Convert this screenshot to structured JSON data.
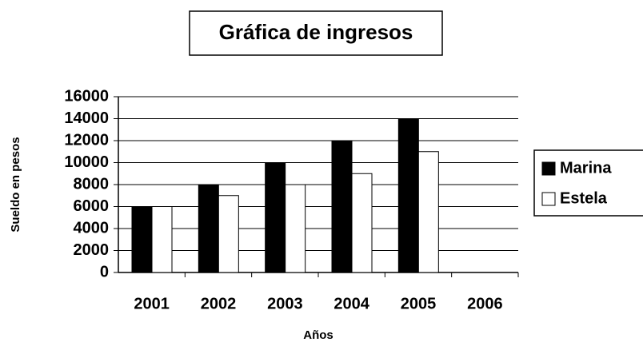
{
  "chart_data": {
    "type": "bar",
    "title": "Gráfica de ingresos",
    "categories": [
      "2001",
      "2002",
      "2003",
      "2004",
      "2005",
      "2006"
    ],
    "series": [
      {
        "name": "Marina",
        "color": "#000000",
        "values": [
          6000,
          8000,
          10000,
          12000,
          14000,
          null
        ]
      },
      {
        "name": "Estela",
        "color": "#ffffff",
        "values": [
          6000,
          7000,
          8000,
          9000,
          11000,
          null
        ]
      }
    ],
    "ylabel": "Sueldo en pesos",
    "xlabel": "Años",
    "ylim": [
      0,
      16000
    ],
    "yticks": [
      0,
      2000,
      4000,
      6000,
      8000,
      10000,
      12000,
      14000,
      16000
    ],
    "grid": true,
    "legend": "right"
  }
}
